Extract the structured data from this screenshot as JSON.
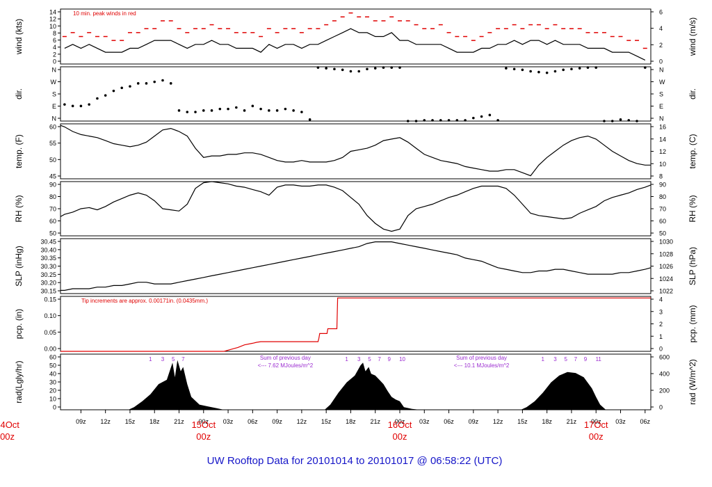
{
  "footer": {
    "title": "UW Rooftop Data for 20101014  to  20101017 @ 06:58:22  (UTC)",
    "color": "#1515c8"
  },
  "colors": {
    "line": "#000000",
    "peak": "#e00000",
    "precip": "#e00000",
    "annotation": "#9a2ad0",
    "date": "#e00000"
  },
  "time_axis": {
    "hour_ticks": [
      "09z",
      "12z",
      "15z",
      "18z",
      "21z",
      "00z",
      "03z",
      "06z",
      "09z",
      "12z",
      "15z",
      "18z",
      "21z",
      "00z",
      "03z",
      "06z",
      "09z",
      "12z",
      "15z",
      "18z",
      "21z",
      "00z",
      "03z",
      "06z"
    ],
    "first_tick_hours": 9,
    "tick_step_hours": 3,
    "range_hours": [
      6.5,
      78.7
    ],
    "date_labels": [
      {
        "hours": 0,
        "day": "14Oct",
        "time": "00z"
      },
      {
        "hours": 24,
        "day": "15Oct",
        "time": "00z"
      },
      {
        "hours": 48,
        "day": "16Oct",
        "time": "00z"
      },
      {
        "hours": 72,
        "day": "17Oct",
        "time": "00z"
      }
    ]
  },
  "chart_data": [
    {
      "type": "line",
      "ylabel": "wind (kts)",
      "y2label": "wind (m/s)",
      "annotation": "10 min. peak winds in red",
      "ylim": [
        0,
        14
      ],
      "yticks": [
        "0",
        "2",
        "4",
        "6",
        "8",
        "10",
        "12",
        "14"
      ],
      "y2ticks": [
        "0",
        "2",
        "4",
        "6"
      ],
      "series": [
        {
          "name": "10 min. peak winds",
          "color": "#e00000",
          "x": [
            7,
            8,
            9,
            10,
            11,
            12,
            13,
            14,
            15,
            16,
            17,
            18,
            19,
            20,
            21,
            22,
            23,
            24,
            25,
            26,
            27,
            28,
            29,
            30,
            31,
            32,
            33,
            34,
            35,
            36,
            37,
            38,
            39,
            40,
            41,
            42,
            43,
            44,
            45,
            46,
            47,
            48,
            49,
            50,
            51,
            52,
            53,
            54,
            55,
            56,
            57,
            58,
            59,
            60,
            61,
            62,
            63,
            64,
            65,
            66,
            67,
            68,
            69,
            70,
            71,
            72,
            73,
            74,
            75,
            76,
            77,
            78
          ],
          "y": [
            7,
            8,
            7,
            8,
            7,
            7,
            6,
            6,
            8,
            8,
            9,
            9,
            11,
            11,
            9,
            8,
            9,
            9,
            10,
            9,
            9,
            8,
            8,
            8,
            7,
            9,
            8,
            9,
            9,
            8,
            9,
            9,
            10,
            11,
            12,
            13,
            12,
            12,
            11,
            11,
            12,
            11,
            11,
            10,
            9,
            9,
            10,
            8,
            7,
            7,
            6,
            7,
            8,
            9,
            9,
            10,
            9,
            10,
            10,
            9,
            10,
            9,
            9,
            9,
            8,
            8,
            8,
            7,
            7,
            6,
            6,
            4
          ]
        },
        {
          "name": "wind speed",
          "x": [
            7,
            8,
            9,
            10,
            11,
            12,
            13,
            14,
            15,
            16,
            17,
            18,
            19,
            20,
            21,
            22,
            23,
            24,
            25,
            26,
            27,
            28,
            29,
            30,
            31,
            32,
            33,
            34,
            35,
            36,
            37,
            38,
            39,
            40,
            41,
            42,
            43,
            44,
            45,
            46,
            47,
            48,
            49,
            50,
            51,
            52,
            53,
            54,
            55,
            56,
            57,
            58,
            59,
            60,
            61,
            62,
            63,
            64,
            65,
            66,
            67,
            68,
            69,
            70,
            71,
            72,
            73,
            74,
            75,
            76,
            77,
            78
          ],
          "y": [
            4,
            5,
            4,
            5,
            4,
            3,
            3,
            3,
            4,
            4,
            5,
            6,
            6,
            6,
            5,
            4,
            5,
            5,
            6,
            5,
            5,
            4,
            4,
            4,
            3,
            5,
            4,
            5,
            5,
            4,
            5,
            5,
            6,
            7,
            8,
            9,
            8,
            8,
            7,
            7,
            8,
            6,
            6,
            5,
            5,
            5,
            5,
            4,
            3,
            3,
            3,
            4,
            4,
            5,
            5,
            6,
            5,
            6,
            6,
            5,
            6,
            5,
            5,
            5,
            4,
            4,
            4,
            3,
            3,
            3,
            2,
            1
          ]
        }
      ]
    },
    {
      "type": "scatter",
      "ylabel": "dir.",
      "y2label": "dir.",
      "yticks": [
        "N",
        "E",
        "S",
        "W",
        "N"
      ],
      "ylim": [
        0,
        360
      ],
      "x": [
        7,
        8,
        9,
        10,
        11,
        12,
        13,
        14,
        15,
        16,
        17,
        18,
        19,
        20,
        21,
        22,
        23,
        24,
        25,
        26,
        27,
        28,
        29,
        30,
        31,
        32,
        33,
        34,
        35,
        36,
        37,
        38,
        39,
        40,
        41,
        42,
        43,
        44,
        45,
        46,
        47,
        48,
        49,
        50,
        51,
        52,
        53,
        54,
        55,
        56,
        57,
        58,
        59,
        60,
        61,
        62,
        63,
        64,
        65,
        66,
        67,
        68,
        69,
        70,
        71,
        72,
        73,
        74,
        75,
        76,
        77,
        78
      ],
      "y": [
        110,
        100,
        100,
        110,
        150,
        170,
        200,
        220,
        230,
        250,
        250,
        260,
        270,
        250,
        70,
        60,
        60,
        70,
        70,
        80,
        80,
        90,
        70,
        100,
        80,
        70,
        70,
        80,
        70,
        60,
        10,
        355,
        350,
        345,
        340,
        330,
        330,
        345,
        350,
        355,
        355,
        355,
        0,
        0,
        5,
        5,
        5,
        5,
        5,
        5,
        20,
        30,
        40,
        5,
        350,
        345,
        340,
        330,
        325,
        320,
        330,
        340,
        345,
        350,
        355,
        355,
        0,
        0,
        10,
        5,
        0,
        355
      ]
    },
    {
      "type": "line",
      "ylabel": "temp. (F)",
      "y2label": "temp. (C)",
      "ylim": [
        44,
        62
      ],
      "yticks": [
        "45",
        "50",
        "55",
        "60"
      ],
      "y2ticks": [
        "8",
        "10",
        "12",
        "14",
        "16"
      ],
      "x": [
        6.5,
        7,
        8,
        9,
        10,
        11,
        12,
        13,
        14,
        15,
        16,
        17,
        18,
        19,
        20,
        21,
        22,
        23,
        24,
        25,
        26,
        27,
        28,
        29,
        30,
        31,
        32,
        33,
        34,
        35,
        36,
        37,
        38,
        39,
        40,
        41,
        42,
        43,
        44,
        45,
        46,
        47,
        48,
        49,
        50,
        51,
        52,
        53,
        54,
        55,
        56,
        57,
        58,
        59,
        60,
        61,
        62,
        63,
        64,
        65,
        66,
        67,
        68,
        69,
        70,
        71,
        72,
        73,
        74,
        75,
        76,
        77,
        78,
        78.7
      ],
      "y": [
        61.5,
        61,
        59.5,
        58.5,
        58,
        57.5,
        56.5,
        55.5,
        55,
        54.5,
        55,
        56,
        58,
        60,
        60.5,
        59.5,
        58,
        54,
        51,
        51.5,
        51.5,
        52,
        52,
        52.5,
        52.5,
        52,
        51,
        50,
        49.5,
        49.5,
        50,
        49.5,
        49.5,
        49.5,
        50,
        51,
        53,
        53.5,
        54,
        55,
        56.5,
        57,
        57.5,
        56,
        54,
        52,
        51,
        50,
        49.5,
        49,
        48,
        47.5,
        47,
        46.5,
        46.5,
        47,
        47,
        46,
        45,
        48.5,
        51,
        53,
        55,
        56.5,
        57.5,
        58,
        57,
        55,
        53,
        51.5,
        50,
        49,
        48.5,
        48.5
      ]
    },
    {
      "type": "line",
      "ylabel": "RH (%)",
      "y2label": "RH (%)",
      "ylim": [
        44,
        92
      ],
      "yticks": [
        "50",
        "60",
        "70",
        "80",
        "90"
      ],
      "y2ticks": [
        "50",
        "60",
        "70",
        "80",
        "90"
      ],
      "x": [
        6.5,
        7,
        8,
        9,
        10,
        11,
        12,
        13,
        14,
        15,
        16,
        17,
        18,
        19,
        20,
        21,
        22,
        23,
        24,
        25,
        26,
        27,
        28,
        29,
        30,
        31,
        32,
        33,
        34,
        35,
        36,
        37,
        38,
        39,
        40,
        41,
        42,
        43,
        44,
        45,
        46,
        47,
        48,
        49,
        50,
        51,
        52,
        53,
        54,
        55,
        56,
        57,
        58,
        59,
        60,
        61,
        62,
        63,
        64,
        65,
        66,
        67,
        68,
        69,
        70,
        71,
        72,
        73,
        74,
        75,
        76,
        77,
        78,
        78.7
      ],
      "y": [
        61,
        63,
        65,
        68,
        69,
        67,
        70,
        74,
        77,
        80,
        82,
        80,
        75,
        68,
        67,
        66,
        72,
        86,
        91,
        92,
        91,
        90,
        88,
        87,
        85,
        83,
        80,
        87,
        89,
        89,
        88,
        88,
        89,
        89,
        87,
        84,
        78,
        72,
        62,
        55,
        50,
        48,
        50,
        62,
        68,
        70,
        72,
        75,
        78,
        80,
        83,
        86,
        88,
        88,
        88,
        86,
        80,
        72,
        64,
        62,
        61,
        60,
        59,
        60,
        64,
        67,
        70,
        75,
        78,
        80,
        82,
        85,
        87,
        89
      ]
    },
    {
      "type": "line",
      "ylabel": "SLP (inHg)",
      "y2label": "SLP (hPa)",
      "ylim": [
        30.12,
        30.46
      ],
      "yticks": [
        "30.15",
        "30.20",
        "30.25",
        "30.30",
        "30.35",
        "30.40",
        "30.45"
      ],
      "y2ticks": [
        "1022",
        "1024",
        "1026",
        "1028",
        "1030"
      ],
      "x": [
        6.5,
        7,
        8,
        9,
        10,
        11,
        12,
        13,
        14,
        15,
        16,
        17,
        18,
        19,
        20,
        21,
        22,
        23,
        24,
        25,
        26,
        27,
        28,
        29,
        30,
        31,
        32,
        33,
        34,
        35,
        36,
        37,
        38,
        39,
        40,
        41,
        42,
        43,
        44,
        45,
        46,
        47,
        48,
        49,
        50,
        51,
        52,
        53,
        54,
        55,
        56,
        57,
        58,
        59,
        60,
        61,
        62,
        63,
        64,
        65,
        66,
        67,
        68,
        69,
        70,
        71,
        72,
        73,
        74,
        75,
        76,
        77,
        78,
        78.7
      ],
      "y": [
        30.14,
        30.14,
        30.15,
        30.15,
        30.15,
        30.16,
        30.16,
        30.17,
        30.17,
        30.18,
        30.19,
        30.19,
        30.18,
        30.18,
        30.18,
        30.19,
        30.2,
        30.21,
        30.22,
        30.23,
        30.24,
        30.25,
        30.26,
        30.27,
        30.28,
        30.29,
        30.3,
        30.31,
        30.32,
        30.33,
        30.34,
        30.35,
        30.36,
        30.37,
        30.38,
        30.39,
        30.4,
        30.41,
        30.43,
        30.44,
        30.44,
        30.44,
        30.43,
        30.42,
        30.41,
        30.4,
        30.39,
        30.38,
        30.37,
        30.36,
        30.34,
        30.33,
        30.32,
        30.3,
        30.28,
        30.27,
        30.26,
        30.25,
        30.25,
        30.26,
        30.26,
        30.27,
        30.27,
        30.26,
        30.25,
        30.24,
        30.24,
        30.24,
        30.24,
        30.25,
        30.25,
        30.26,
        30.27,
        30.28
      ]
    },
    {
      "type": "line",
      "ylabel": "pcp. (in)",
      "y2label": "pcp. (mm)",
      "annotation": "Tip increments are approx. 0.00171in. (0.0435mm.)",
      "ylim": [
        0,
        0.17
      ],
      "yticks": [
        "0.00",
        "0.05",
        "0.10",
        "0.15"
      ],
      "y2ticks": [
        "0",
        "1",
        "2",
        "3",
        "4"
      ],
      "x": [
        6.5,
        26.5,
        27.2,
        28.2,
        29,
        30,
        30.5,
        31,
        38,
        38.1,
        38.2,
        39.1,
        39.2,
        40.3,
        40.4,
        78.7
      ],
      "y": [
        0,
        0,
        0.005,
        0.012,
        0.02,
        0.025,
        0.028,
        0.03,
        0.03,
        0.04,
        0.055,
        0.055,
        0.07,
        0.07,
        0.165,
        0.165
      ]
    },
    {
      "type": "area",
      "ylabel": "rad(Lgly/hr)",
      "y2label": "rad (W/m^2)",
      "ylim": [
        0,
        65
      ],
      "yticks": [
        "0",
        "10",
        "20",
        "30",
        "40",
        "50",
        "60"
      ],
      "y2ticks": [
        "0",
        "200",
        "400",
        "600"
      ],
      "annotations": [
        {
          "hours": 34,
          "line1": "Sum of previous day",
          "line2": "<--- 7.62 MJoules/m^2"
        },
        {
          "hours": 58,
          "line1": "Sum of previous day",
          "line2": "<--- 10.1 MJoules/m^2"
        }
      ],
      "hour_markers": [
        {
          "hours": 17.5,
          "label": "1"
        },
        {
          "hours": 19,
          "label": "3"
        },
        {
          "hours": 20.3,
          "label": "5"
        },
        {
          "hours": 21.5,
          "label": "7"
        },
        {
          "hours": 41.5,
          "label": "1"
        },
        {
          "hours": 43,
          "label": "3"
        },
        {
          "hours": 44.3,
          "label": "5"
        },
        {
          "hours": 45.5,
          "label": "7"
        },
        {
          "hours": 46.7,
          "label": "9"
        },
        {
          "hours": 48.3,
          "label": "10"
        },
        {
          "hours": 65.5,
          "label": "1"
        },
        {
          "hours": 67,
          "label": "3"
        },
        {
          "hours": 68.3,
          "label": "5"
        },
        {
          "hours": 69.5,
          "label": "7"
        },
        {
          "hours": 70.7,
          "label": "9"
        },
        {
          "hours": 72.3,
          "label": "11"
        }
      ],
      "x": [
        6.5,
        14.8,
        15.5,
        16.5,
        17.5,
        18.5,
        19.5,
        20.2,
        20.5,
        20.8,
        21.2,
        21.5,
        22,
        22.5,
        23.5,
        24.5,
        25.5,
        26.5,
        38.8,
        39.5,
        40.5,
        41.5,
        42.5,
        43.2,
        43.5,
        43.8,
        44.2,
        44.5,
        45,
        45.5,
        46,
        46.5,
        47,
        47.5,
        48,
        48.5,
        49.5,
        50.5,
        62.8,
        63.5,
        64.5,
        65.5,
        66.5,
        67.5,
        68.5,
        69.5,
        70.5,
        71.5,
        72,
        72.5,
        73.2,
        78.7
      ],
      "y": [
        0,
        0,
        3,
        10,
        18,
        30,
        35,
        55,
        38,
        58,
        45,
        50,
        30,
        15,
        6,
        4,
        2,
        0,
        0,
        6,
        20,
        32,
        40,
        52,
        55,
        45,
        50,
        42,
        40,
        35,
        30,
        22,
        15,
        12,
        10,
        3,
        1,
        0,
        0,
        3,
        10,
        20,
        32,
        40,
        44,
        43,
        38,
        25,
        15,
        6,
        0,
        0
      ]
    }
  ]
}
